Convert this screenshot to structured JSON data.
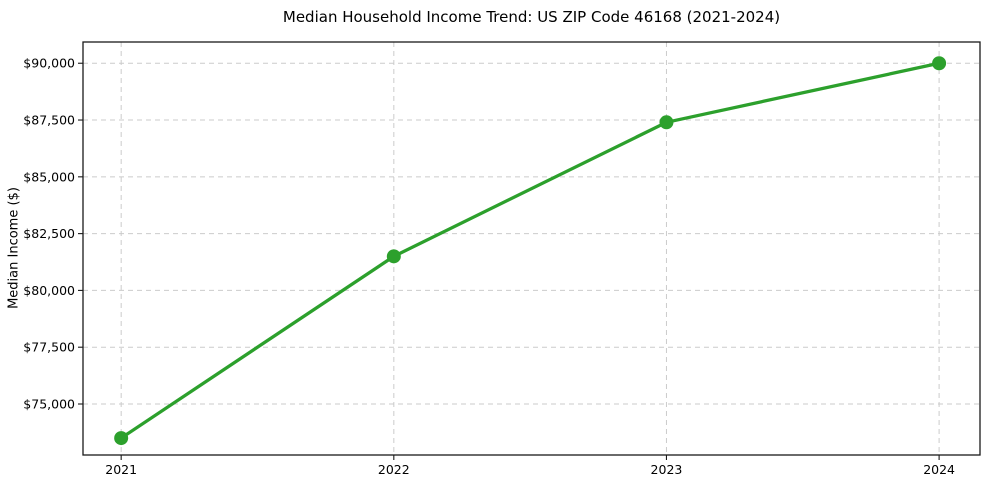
{
  "chart_data": {
    "type": "line",
    "title": "Median Household Income Trend: US ZIP Code 46168 (2021-2024)",
    "xlabel": "",
    "ylabel": "Median Income ($)",
    "x": [
      2021,
      2022,
      2023,
      2024
    ],
    "x_tick_labels": [
      "2021",
      "2022",
      "2023",
      "2024"
    ],
    "values": [
      73500,
      81500,
      87400,
      90000
    ],
    "y_ticks": [
      75000,
      77500,
      80000,
      82500,
      85000,
      87500,
      90000
    ],
    "y_tick_labels": [
      "$75,000",
      "$77,500",
      "$80,000",
      "$82,500",
      "$85,000",
      "$87,500",
      "$90,000"
    ],
    "xlim": [
      2020.86,
      2024.15
    ],
    "ylim": [
      72755,
      90935
    ],
    "grid": {
      "visible": true,
      "style": "dashed",
      "axes": "both"
    },
    "legend": "none",
    "colors": {
      "line": "#2ca02c",
      "marker": "#2ca02c",
      "grid": "#cbcbcb",
      "axis": "#1a1a1a",
      "text": "#000000",
      "background": "#ffffff"
    }
  }
}
